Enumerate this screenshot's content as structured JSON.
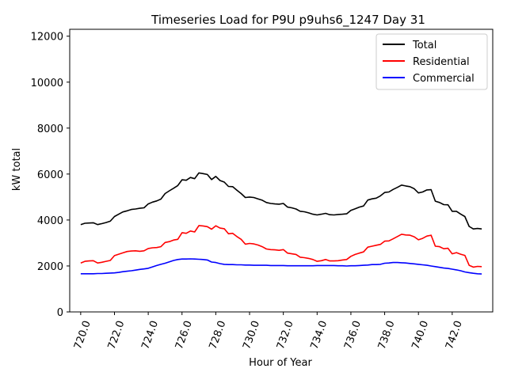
{
  "chart_data": {
    "type": "line",
    "title": "Timeseries Load for P9U p9uhs6_1247  Day 31",
    "xlabel": "Hour of Year",
    "ylabel": "kW total",
    "xlim": [
      719.35,
      744.4
    ],
    "ylim": [
      0,
      12300
    ],
    "xticks": [
      720,
      722,
      724,
      726,
      728,
      730,
      732,
      734,
      736,
      738,
      740,
      742
    ],
    "xtick_labels": [
      "720.0",
      "722.0",
      "724.0",
      "726.0",
      "728.0",
      "730.0",
      "732.0",
      "734.0",
      "736.0",
      "738.0",
      "740.0",
      "742.0"
    ],
    "yticks": [
      0,
      2000,
      4000,
      6000,
      8000,
      10000,
      12000
    ],
    "ytick_labels": [
      "0",
      "2000",
      "4000",
      "6000",
      "8000",
      "10000",
      "12000"
    ],
    "legend_position": "top-right",
    "grid": false,
    "x": [
      720.0,
      720.25,
      720.5,
      720.75,
      721.0,
      721.25,
      721.5,
      721.75,
      722.0,
      722.25,
      722.5,
      722.75,
      723.0,
      723.25,
      723.5,
      723.75,
      724.0,
      724.25,
      724.5,
      724.75,
      725.0,
      725.25,
      725.5,
      725.75,
      726.0,
      726.25,
      726.5,
      726.75,
      727.0,
      727.25,
      727.5,
      727.75,
      728.0,
      728.25,
      728.5,
      728.75,
      729.0,
      729.25,
      729.5,
      729.75,
      730.0,
      730.25,
      730.5,
      730.75,
      731.0,
      731.25,
      731.5,
      731.75,
      732.0,
      732.25,
      732.5,
      732.75,
      733.0,
      733.25,
      733.5,
      733.75,
      734.0,
      734.25,
      734.5,
      734.75,
      735.0,
      735.25,
      735.5,
      735.75,
      736.0,
      736.25,
      736.5,
      736.75,
      737.0,
      737.25,
      737.5,
      737.75,
      738.0,
      738.25,
      738.5,
      738.75,
      739.0,
      739.25,
      739.5,
      739.75,
      740.0,
      740.25,
      740.5,
      740.75,
      741.0,
      741.25,
      741.5,
      741.75,
      742.0,
      742.25,
      742.5,
      742.75,
      743.0,
      743.25,
      743.5,
      743.75
    ],
    "series": [
      {
        "name": "Total",
        "color": "#000000",
        "values": [
          3800,
          3860,
          3870,
          3880,
          3800,
          3840,
          3890,
          3950,
          4150,
          4250,
          4350,
          4400,
          4460,
          4480,
          4510,
          4530,
          4700,
          4780,
          4830,
          4910,
          5150,
          5270,
          5380,
          5500,
          5750,
          5730,
          5850,
          5800,
          6050,
          6020,
          5980,
          5760,
          5900,
          5720,
          5650,
          5460,
          5450,
          5300,
          5150,
          4980,
          5000,
          4980,
          4920,
          4860,
          4760,
          4720,
          4700,
          4690,
          4720,
          4560,
          4530,
          4480,
          4380,
          4360,
          4310,
          4250,
          4220,
          4250,
          4290,
          4230,
          4220,
          4240,
          4250,
          4270,
          4420,
          4490,
          4560,
          4610,
          4870,
          4920,
          4950,
          5050,
          5200,
          5220,
          5330,
          5420,
          5520,
          5480,
          5450,
          5360,
          5180,
          5220,
          5310,
          5320,
          4820,
          4760,
          4670,
          4660,
          4380,
          4380,
          4260,
          4150,
          3720,
          3610,
          3630,
          3610
        ]
      },
      {
        "name": "Residential",
        "color": "#ff0000",
        "values": [
          2130,
          2200,
          2220,
          2230,
          2130,
          2160,
          2200,
          2240,
          2450,
          2510,
          2570,
          2630,
          2650,
          2660,
          2640,
          2660,
          2760,
          2790,
          2800,
          2840,
          3020,
          3060,
          3130,
          3160,
          3450,
          3420,
          3520,
          3480,
          3760,
          3740,
          3710,
          3600,
          3750,
          3650,
          3620,
          3400,
          3420,
          3280,
          3160,
          2950,
          2980,
          2960,
          2910,
          2840,
          2740,
          2710,
          2700,
          2680,
          2710,
          2560,
          2530,
          2500,
          2380,
          2360,
          2330,
          2280,
          2200,
          2230,
          2280,
          2220,
          2220,
          2230,
          2260,
          2280,
          2420,
          2500,
          2560,
          2610,
          2820,
          2860,
          2900,
          2940,
          3080,
          3090,
          3180,
          3280,
          3380,
          3350,
          3340,
          3270,
          3140,
          3200,
          3300,
          3340,
          2860,
          2840,
          2750,
          2770,
          2530,
          2580,
          2510,
          2460,
          2030,
          1950,
          1980,
          1970
        ]
      },
      {
        "name": "Commercial",
        "color": "#0000ff",
        "values": [
          1660,
          1660,
          1660,
          1660,
          1670,
          1670,
          1680,
          1690,
          1700,
          1720,
          1750,
          1770,
          1790,
          1820,
          1850,
          1870,
          1900,
          1960,
          2020,
          2070,
          2120,
          2180,
          2240,
          2280,
          2300,
          2300,
          2310,
          2300,
          2290,
          2280,
          2260,
          2170,
          2150,
          2100,
          2070,
          2060,
          2060,
          2050,
          2050,
          2040,
          2040,
          2030,
          2030,
          2030,
          2030,
          2020,
          2020,
          2020,
          2020,
          2010,
          2010,
          2010,
          2010,
          2010,
          2010,
          2010,
          2020,
          2020,
          2020,
          2020,
          2020,
          2010,
          2010,
          2000,
          2010,
          2010,
          2020,
          2030,
          2040,
          2060,
          2060,
          2070,
          2120,
          2130,
          2150,
          2150,
          2140,
          2130,
          2110,
          2090,
          2070,
          2050,
          2030,
          2000,
          1970,
          1940,
          1910,
          1890,
          1860,
          1830,
          1790,
          1740,
          1710,
          1680,
          1660,
          1650
        ]
      }
    ]
  }
}
